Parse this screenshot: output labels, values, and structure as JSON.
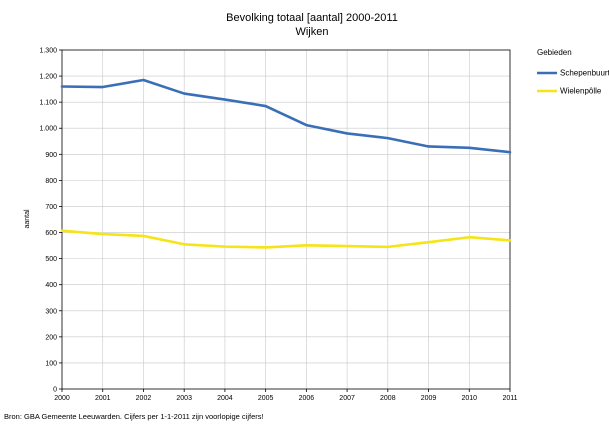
{
  "chart_data": {
    "type": "line",
    "title": "Bevolking totaal [aantal] 2000-2011",
    "subtitle": "Wijken",
    "ylabel": "aantal",
    "xlabel": "",
    "x": [
      2000,
      2001,
      2002,
      2003,
      2004,
      2005,
      2006,
      2007,
      2008,
      2009,
      2010,
      2011
    ],
    "ylim": [
      0,
      1300
    ],
    "yticks": [
      0,
      100,
      200,
      300,
      400,
      500,
      600,
      700,
      800,
      900,
      1000,
      1100,
      1200,
      1300
    ],
    "ytick_labels": [
      "0",
      "100",
      "200",
      "300",
      "400",
      "500",
      "600",
      "700",
      "800",
      "900",
      "1.000",
      "1.100",
      "1.200",
      "1.300"
    ],
    "grid": true,
    "legend_title": "Gebieden",
    "legend_position": "right",
    "series": [
      {
        "name": "Schepenbuurt",
        "color": "#3a6fb8",
        "values": [
          1160,
          1158,
          1185,
          1133,
          1110,
          1085,
          1012,
          980,
          962,
          930,
          925,
          908
        ]
      },
      {
        "name": "Wielenpôlle",
        "color": "#f5e416",
        "values": [
          607,
          594,
          587,
          555,
          546,
          543,
          551,
          548,
          545,
          563,
          582,
          570
        ]
      }
    ],
    "source": "Bron: GBA Gemeente Leeuwarden. Cijfers per 1-1-2011 zijn voorlopige cijfers!"
  }
}
